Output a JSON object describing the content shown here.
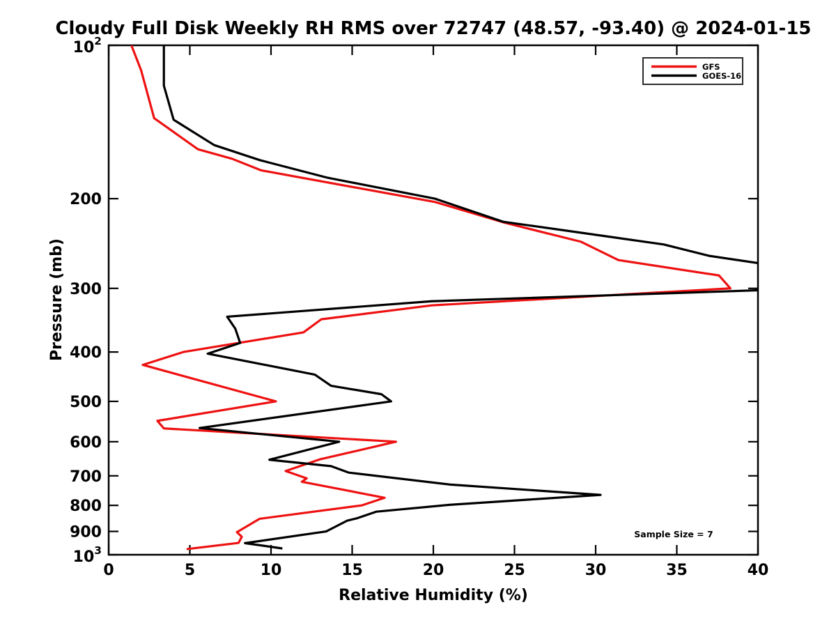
{
  "title": "Cloudy Full Disk Weekly RH RMS over 72747 (48.57, -93.40) @ 2024-01-15",
  "annotation": "Sample Size = 7",
  "legend": {
    "entries": [
      {
        "label": "GFS",
        "color": "#ee1111"
      },
      {
        "label": "GOES-16",
        "color": "#000000"
      }
    ]
  },
  "chart_data": {
    "type": "line",
    "title": "Cloudy Full Disk Weekly RH RMS over 72747 (48.57, -93.40) @ 2024-01-15",
    "xlabel": "Relative Humidity (%)",
    "ylabel": "Pressure (mb)",
    "xlim": [
      0,
      40
    ],
    "ylim": [
      100,
      1000
    ],
    "y_scale": "log",
    "y_inverted": true,
    "grid": false,
    "legend_position": "upper right",
    "x_ticks": [
      0,
      5,
      10,
      15,
      20,
      25,
      30,
      35,
      40
    ],
    "y_ticks": [
      {
        "value": 100,
        "label": "10^2"
      },
      {
        "value": 200,
        "label": "200"
      },
      {
        "value": 300,
        "label": "300"
      },
      {
        "value": 400,
        "label": "400"
      },
      {
        "value": 500,
        "label": "500"
      },
      {
        "value": 600,
        "label": "600"
      },
      {
        "value": 700,
        "label": "700"
      },
      {
        "value": 800,
        "label": "800"
      },
      {
        "value": 900,
        "label": "900"
      },
      {
        "value": 1000,
        "label": "10^3"
      }
    ],
    "series": [
      {
        "name": "GFS",
        "color": "#ee1111",
        "points_rh_pressure": [
          [
            1.4,
            100
          ],
          [
            2.0,
            112
          ],
          [
            2.8,
            139
          ],
          [
            5.5,
            160
          ],
          [
            7.6,
            167
          ],
          [
            9.4,
            176
          ],
          [
            20.1,
            203
          ],
          [
            24.4,
            223
          ],
          [
            29.1,
            243
          ],
          [
            31.4,
            264
          ],
          [
            37.6,
            283
          ],
          [
            38.3,
            300
          ],
          [
            19.9,
            324
          ],
          [
            13.1,
            345
          ],
          [
            12.0,
            366
          ],
          [
            4.6,
            400
          ],
          [
            2.1,
            424
          ],
          [
            10.3,
            500
          ],
          [
            3.0,
            546
          ],
          [
            3.4,
            565
          ],
          [
            17.7,
            600
          ],
          [
            13.0,
            650
          ],
          [
            10.9,
            685
          ],
          [
            12.2,
            708
          ],
          [
            11.9,
            719
          ],
          [
            17.0,
            773
          ],
          [
            15.6,
            800
          ],
          [
            9.3,
            850
          ],
          [
            7.9,
            903
          ],
          [
            8.2,
            922
          ],
          [
            8.0,
            948
          ],
          [
            4.8,
            975
          ]
        ]
      },
      {
        "name": "GOES-16",
        "color": "#000000",
        "points_rh_pressure": [
          [
            3.4,
            100
          ],
          [
            3.4,
            120
          ],
          [
            4.0,
            140
          ],
          [
            6.5,
            157
          ],
          [
            9.3,
            168
          ],
          [
            13.5,
            182
          ],
          [
            20.1,
            200
          ],
          [
            24.3,
            222
          ],
          [
            29.8,
            235
          ],
          [
            34.2,
            246
          ],
          [
            37.0,
            259
          ],
          [
            40.8,
            270
          ],
          [
            41.8,
            285
          ],
          [
            40.8,
            302
          ],
          [
            19.9,
            318
          ],
          [
            7.3,
            341
          ],
          [
            7.8,
            360
          ],
          [
            8.1,
            384
          ],
          [
            6.1,
            403
          ],
          [
            12.7,
            443
          ],
          [
            13.7,
            466
          ],
          [
            16.8,
            484
          ],
          [
            17.4,
            500
          ],
          [
            5.6,
            564
          ],
          [
            14.2,
            600
          ],
          [
            9.9,
            651
          ],
          [
            13.7,
            670
          ],
          [
            14.8,
            690
          ],
          [
            21.0,
            728
          ],
          [
            30.3,
            763
          ],
          [
            21.0,
            798
          ],
          [
            16.5,
            823
          ],
          [
            15.3,
            848
          ],
          [
            14.7,
            857
          ],
          [
            13.4,
            900
          ],
          [
            8.4,
            949
          ],
          [
            10.7,
            972
          ]
        ]
      }
    ]
  }
}
